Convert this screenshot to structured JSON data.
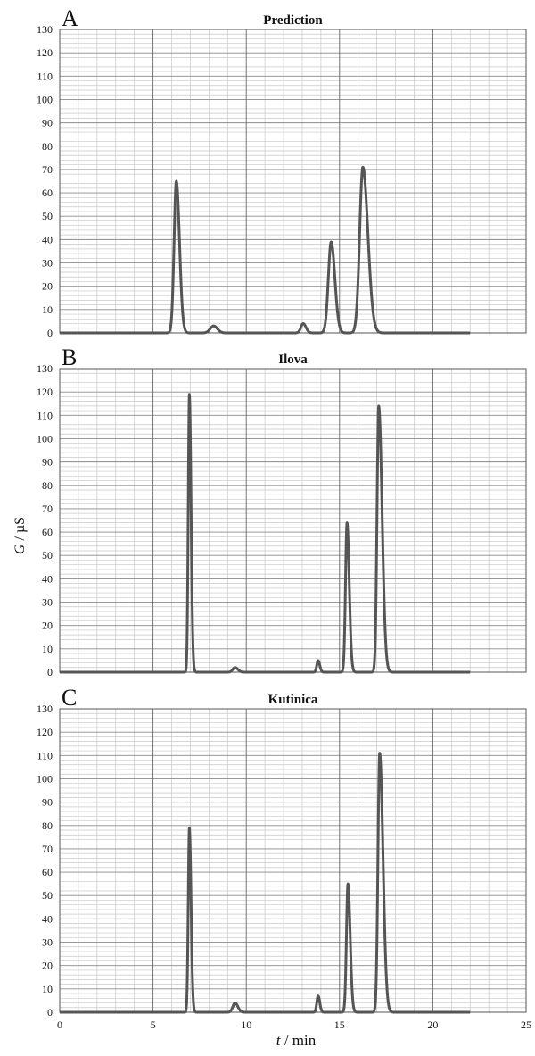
{
  "figure": {
    "ylabel_var": "G",
    "ylabel_unit": " / µS",
    "xlabel_var": "t",
    "xlabel_unit": " / min"
  },
  "chart_data": [
    {
      "type": "line",
      "panel_letter": "A",
      "title": "Prediction",
      "xlim": [
        0,
        25
      ],
      "ylim": [
        0,
        130
      ],
      "xticks": [
        0,
        5,
        10,
        15,
        20,
        25
      ],
      "yticks": [
        0,
        10,
        20,
        30,
        40,
        50,
        60,
        70,
        80,
        90,
        100,
        110,
        120,
        130
      ],
      "x_range": [
        0,
        22
      ],
      "baseline": 0,
      "line_color": "#555555",
      "peaks": [
        {
          "t": 6.25,
          "height": 65,
          "width_left": 0.12,
          "width_right": 0.17
        },
        {
          "t": 8.25,
          "height": 3,
          "width_left": 0.18,
          "width_right": 0.2
        },
        {
          "t": 13.05,
          "height": 4,
          "width_left": 0.12,
          "width_right": 0.15
        },
        {
          "t": 14.55,
          "height": 39,
          "width_left": 0.15,
          "width_right": 0.2
        },
        {
          "t": 16.25,
          "height": 71,
          "width_left": 0.17,
          "width_right": 0.27
        }
      ],
      "xlabel": "",
      "ylabel": ""
    },
    {
      "type": "line",
      "panel_letter": "B",
      "title": "Ilova",
      "xlim": [
        0,
        25
      ],
      "ylim": [
        0,
        130
      ],
      "xticks": [
        0,
        5,
        10,
        15,
        20,
        25
      ],
      "yticks": [
        0,
        10,
        20,
        30,
        40,
        50,
        60,
        70,
        80,
        90,
        100,
        110,
        120,
        130
      ],
      "x_range": [
        0,
        22
      ],
      "baseline": 0,
      "line_color": "#555555",
      "peaks": [
        {
          "t": 6.95,
          "height": 119,
          "width_left": 0.06,
          "width_right": 0.09
        },
        {
          "t": 9.4,
          "height": 2,
          "width_left": 0.12,
          "width_right": 0.15
        },
        {
          "t": 13.85,
          "height": 5,
          "width_left": 0.07,
          "width_right": 0.09
        },
        {
          "t": 15.4,
          "height": 64,
          "width_left": 0.08,
          "width_right": 0.12
        },
        {
          "t": 17.1,
          "height": 114,
          "width_left": 0.09,
          "width_right": 0.18
        }
      ],
      "xlabel": "",
      "ylabel": ""
    },
    {
      "type": "line",
      "panel_letter": "C",
      "title": "Kutinica",
      "xlim": [
        0,
        25
      ],
      "ylim": [
        0,
        130
      ],
      "xticks": [
        0,
        5,
        10,
        15,
        20,
        25
      ],
      "yticks": [
        0,
        10,
        20,
        30,
        40,
        50,
        60,
        70,
        80,
        90,
        100,
        110,
        120,
        130
      ],
      "x_range": [
        0,
        22
      ],
      "baseline": 0,
      "line_color": "#555555",
      "peaks": [
        {
          "t": 6.95,
          "height": 79,
          "width_left": 0.06,
          "width_right": 0.09
        },
        {
          "t": 9.4,
          "height": 4,
          "width_left": 0.12,
          "width_right": 0.15
        },
        {
          "t": 13.85,
          "height": 7,
          "width_left": 0.07,
          "width_right": 0.09
        },
        {
          "t": 15.45,
          "height": 55,
          "width_left": 0.08,
          "width_right": 0.12
        },
        {
          "t": 17.15,
          "height": 111,
          "width_left": 0.09,
          "width_right": 0.18
        }
      ],
      "xlabel": "t / min",
      "ylabel": "G / µS"
    }
  ]
}
